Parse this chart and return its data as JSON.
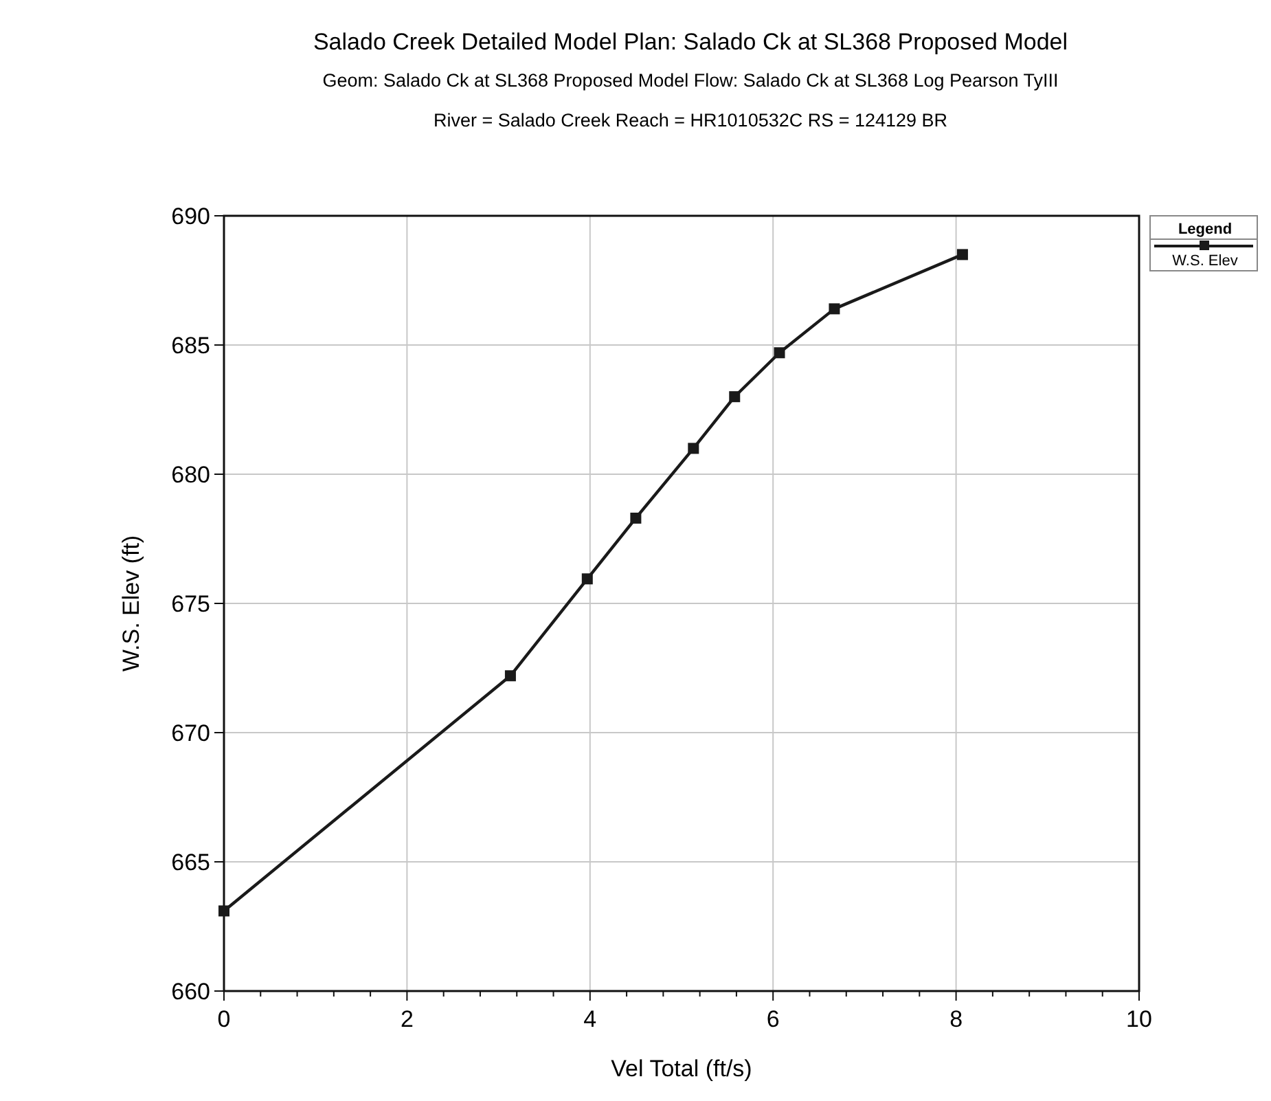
{
  "chart_data": {
    "type": "line",
    "title": "Salado Creek Detailed Model       Plan: Salado Ck at SL368 Proposed Model",
    "subtitle": "Geom: Salado Ck at SL368 Proposed Model    Flow: Salado Ck at SL368 Log Pearson TyIII",
    "annotations": [
      "River = Salado Creek   Reach = HR1010532C      RS = 124129   BR"
    ],
    "xlabel": "Vel Total (ft/s)",
    "ylabel": "W.S. Elev  (ft)",
    "legend_title": "Legend",
    "x": [
      0,
      3.13,
      3.97,
      4.5,
      5.13,
      5.58,
      6.07,
      6.67,
      8.07
    ],
    "series": [
      {
        "name": "W.S. Elev",
        "color": "#1a1a1a",
        "values": [
          663.1,
          672.2,
          675.95,
          678.3,
          681.0,
          683.0,
          684.7,
          686.4,
          688.5
        ]
      }
    ],
    "xlim": [
      0,
      10
    ],
    "ylim": [
      660,
      690
    ],
    "xticks": [
      0,
      {
        "value": 0.4,
        "label": null
      },
      {
        "value": 0.8,
        "label": null
      },
      {
        "value": 1.2,
        "label": null
      },
      {
        "value": 1.6,
        "label": null
      },
      2,
      {
        "value": 2.4,
        "label": null
      },
      {
        "value": 2.8,
        "label": null
      },
      {
        "value": 3.2,
        "label": null
      },
      {
        "value": 3.6,
        "label": null
      },
      4,
      {
        "value": 4.4,
        "label": null
      },
      {
        "value": 4.8,
        "label": null
      },
      {
        "value": 5.2,
        "label": null
      },
      {
        "value": 5.6,
        "label": null
      },
      6,
      {
        "value": 6.4,
        "label": null
      },
      {
        "value": 6.8,
        "label": null
      },
      {
        "value": 7.2,
        "label": null
      },
      {
        "value": 7.6,
        "label": null
      },
      8,
      {
        "value": 8.4,
        "label": null
      },
      {
        "value": 8.8,
        "label": null
      },
      {
        "value": 9.2,
        "label": null
      },
      {
        "value": 9.6,
        "label": null
      },
      10
    ],
    "yticks": [
      660,
      665,
      670,
      675,
      680,
      685,
      690
    ],
    "grid": true,
    "legend": "top right",
    "marker": "square",
    "line_style": "solid"
  }
}
